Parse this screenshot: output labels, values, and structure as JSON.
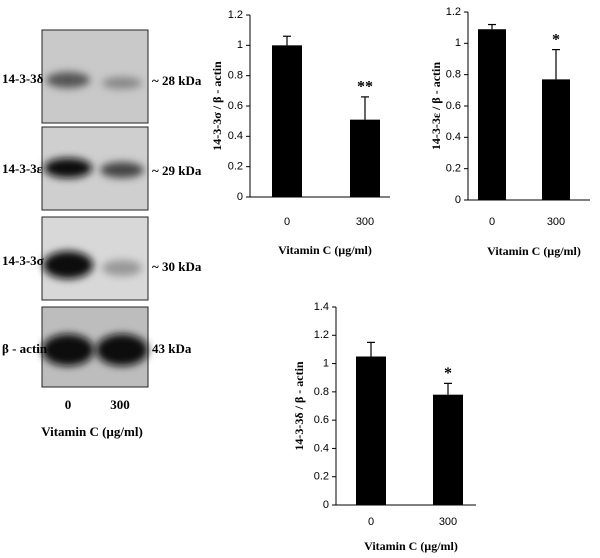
{
  "chart_data": [
    {
      "type": "bar",
      "ylabel": "14-3-3σ / β - actin",
      "xlabel": "Vitamin C (µg/ml)",
      "categories": [
        "0",
        "300"
      ],
      "values": [
        1.0,
        0.51
      ],
      "errors": [
        0.06,
        0.15
      ],
      "color": "#000000",
      "annotations": [
        {
          "category": "300",
          "text": "**"
        }
      ],
      "ylim": [
        0,
        1.2
      ],
      "yticks": [
        0,
        0.2,
        0.4,
        0.6,
        0.8,
        1,
        1.2
      ]
    },
    {
      "type": "bar",
      "ylabel": "14-3-3ε / β - actin",
      "xlabel": "Vitamin C (µg/ml)",
      "categories": [
        "0",
        "300"
      ],
      "values": [
        1.09,
        0.77
      ],
      "errors": [
        0.03,
        0.19
      ],
      "color": "#000000",
      "annotations": [
        {
          "category": "300",
          "text": "*"
        }
      ],
      "ylim": [
        0,
        1.2
      ],
      "yticks": [
        0,
        0.2,
        0.4,
        0.6,
        0.8,
        1,
        1.2
      ]
    },
    {
      "type": "bar",
      "ylabel": "14-3-3δ / β - actin",
      "xlabel": "Vitamin C (µg/ml)",
      "categories": [
        "0",
        "300"
      ],
      "values": [
        1.05,
        0.78
      ],
      "errors": [
        0.1,
        0.08
      ],
      "color": "#000000",
      "annotations": [
        {
          "category": "300",
          "text": "*"
        }
      ],
      "ylim": [
        0,
        1.4
      ],
      "yticks": [
        0,
        0.2,
        0.4,
        0.6,
        0.8,
        1,
        1.2,
        1.4
      ]
    }
  ],
  "blot": {
    "proteins": [
      "14-3-3δ",
      "14-3-3ε",
      "14-3-3σ",
      "β - actin"
    ],
    "sizes": [
      "~ 28 kDa",
      "~ 29 kDa",
      "~ 30 kDa",
      "43 kDa"
    ],
    "lanes": [
      "0",
      "300"
    ],
    "xlabel": "Vitamin C (µg/ml)"
  }
}
